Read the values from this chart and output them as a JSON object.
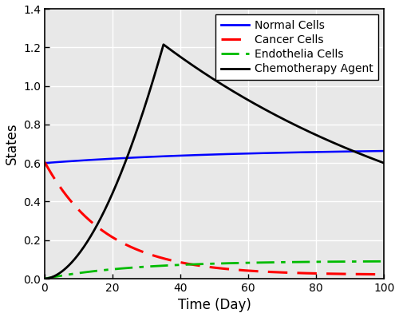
{
  "title": "",
  "xlabel": "Time (Day)",
  "ylabel": "States",
  "xlim": [
    0,
    100
  ],
  "ylim": [
    0,
    1.4
  ],
  "xticks": [
    0,
    20,
    40,
    60,
    80,
    100
  ],
  "yticks": [
    0,
    0.2,
    0.4,
    0.6,
    0.8,
    1.0,
    1.2,
    1.4
  ],
  "legend_labels": [
    "Normal Cells",
    "Cancer Cells",
    "Endothelia Cells",
    "Chemotherapy Agent"
  ],
  "legend_colors": [
    "#0000ff",
    "#ff0000",
    "#00bb00",
    "#000000"
  ],
  "legend_styles": [
    "solid",
    "dashed",
    "dashdot",
    "solid"
  ],
  "normal_cells": {
    "color": "#0000ff",
    "linestyle": "solid",
    "linewidth": 1.8
  },
  "cancer_cells": {
    "color": "#ff0000",
    "linestyle": "dashed",
    "linewidth": 2.2
  },
  "endothelia_cells": {
    "color": "#00bb00",
    "linestyle": "dashdot",
    "linewidth": 2.0
  },
  "chemo_agent": {
    "color": "#000000",
    "linestyle": "solid",
    "linewidth": 2.0
  },
  "background_color": "#e8e8e8",
  "grid_color": "#ffffff",
  "font_size_labels": 12,
  "font_size_ticks": 10,
  "font_size_legend": 10
}
